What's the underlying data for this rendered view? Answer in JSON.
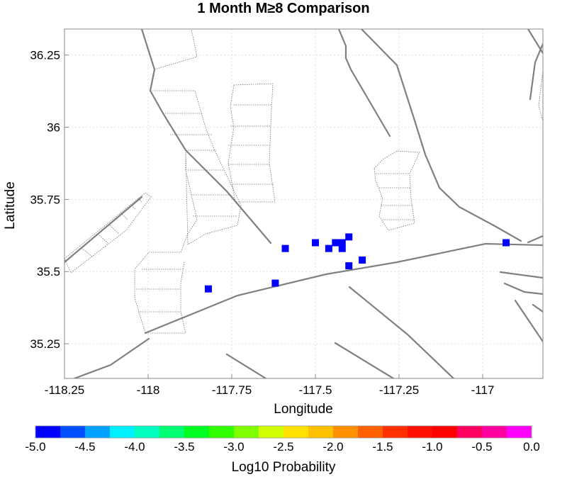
{
  "title": "1 Month M≥8 Comparison",
  "map": {
    "xlabel": "Longitude",
    "ylabel": "Latitude",
    "xlim": [
      -118.25,
      -116.82
    ],
    "ylim": [
      35.13,
      36.34
    ],
    "xticks": [
      -118.25,
      -118,
      -117.75,
      -117.5,
      -117.25,
      -117
    ],
    "xtick_labels": [
      "-118.25",
      "-118",
      "-117.75",
      "-117.5",
      "-117.25",
      "-117"
    ],
    "yticks": [
      35.25,
      35.5,
      35.75,
      36,
      36.25
    ],
    "ytick_labels": [
      "35.25",
      "35.5",
      "35.75",
      "36",
      "36.25"
    ],
    "marker_color": "#0000ff",
    "fault_color": "#808080"
  },
  "chart_data": {
    "type": "scatter",
    "xlabel": "Longitude",
    "ylabel": "Latitude",
    "value_label": "Log10 Probability",
    "points": [
      {
        "lon": -117.82,
        "lat": 35.44,
        "value": -5.0
      },
      {
        "lon": -117.62,
        "lat": 35.46,
        "value": -5.0
      },
      {
        "lon": -117.59,
        "lat": 35.58,
        "value": -5.0
      },
      {
        "lon": -117.5,
        "lat": 35.6,
        "value": -5.0
      },
      {
        "lon": -117.46,
        "lat": 35.58,
        "value": -5.0
      },
      {
        "lon": -117.44,
        "lat": 35.6,
        "value": -5.0
      },
      {
        "lon": -117.42,
        "lat": 35.6,
        "value": -5.0
      },
      {
        "lon": -117.42,
        "lat": 35.58,
        "value": -5.0
      },
      {
        "lon": -117.4,
        "lat": 35.62,
        "value": -5.0
      },
      {
        "lon": -117.4,
        "lat": 35.52,
        "value": -5.0
      },
      {
        "lon": -117.36,
        "lat": 35.54,
        "value": -5.0
      },
      {
        "lon": -116.93,
        "lat": 35.6,
        "value": -5.0
      }
    ]
  },
  "colorbar": {
    "label": "Log10 Probability",
    "tick_labels": [
      "-5.0",
      "-4.5",
      "-4.0",
      "-3.5",
      "-3.0",
      "-2.5",
      "-2.0",
      "-1.5",
      "-1.0",
      "-0.5",
      "0.0"
    ],
    "colors": [
      "#0000ff",
      "#0050ff",
      "#00a0ff",
      "#00f0ff",
      "#00ffc0",
      "#00ff70",
      "#00ff20",
      "#30ff00",
      "#80ff00",
      "#d0ff00",
      "#ffe000",
      "#ffc000",
      "#ff9000",
      "#ff6000",
      "#ff3000",
      "#ff1000",
      "#ff0000",
      "#ff0060",
      "#ff00a0",
      "#ff00ff"
    ]
  }
}
